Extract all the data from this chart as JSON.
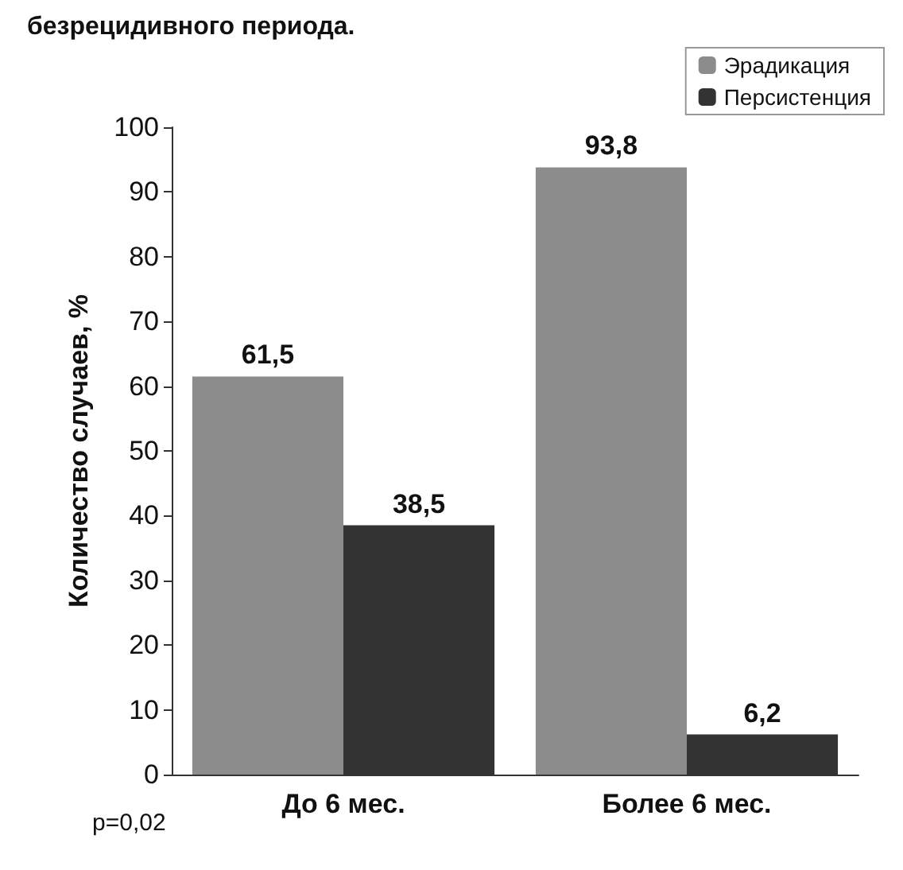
{
  "chart_data": {
    "type": "bar",
    "title": "безрецидивного периода.",
    "ylabel": "Количество случаев, %",
    "categories": [
      "До 6 мес.",
      "Более 6 мес."
    ],
    "series": [
      {
        "name": "Эрадикация",
        "color": "#8c8c8c",
        "values": [
          61.5,
          93.8
        ],
        "value_labels": [
          "61,5",
          "93,8"
        ]
      },
      {
        "name": "Персистенция",
        "color": "#333333",
        "values": [
          38.5,
          6.2
        ],
        "value_labels": [
          "38,5",
          "6,2"
        ]
      }
    ],
    "ylim": [
      0,
      100
    ],
    "yticks": [
      0,
      10,
      20,
      30,
      40,
      50,
      60,
      70,
      80,
      90,
      100
    ],
    "grid": false,
    "legend": "top right",
    "annotations": [
      "p=0,02"
    ]
  }
}
